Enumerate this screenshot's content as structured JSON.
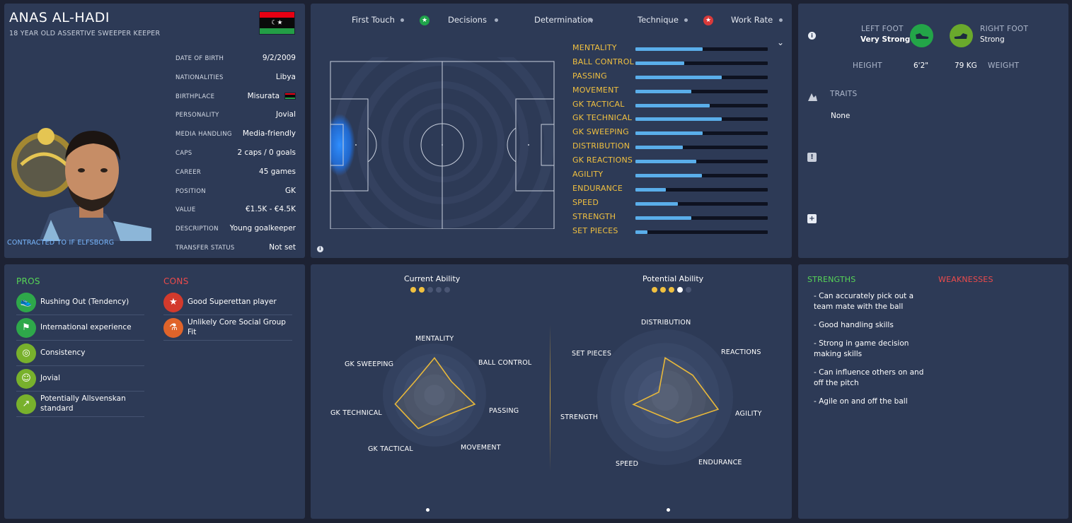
{
  "profile": {
    "name": "ANAS AL-HADI",
    "subtitle": "18 YEAR OLD ASSERTIVE  SWEEPER KEEPER",
    "contract": "CONTRACTED TO IF ELFSBORG",
    "flag_colors": {
      "red": "#e70013",
      "black": "#0a0a0a",
      "green": "#239e46"
    },
    "info": [
      {
        "label": "DATE OF BIRTH",
        "value": "9/2/2009"
      },
      {
        "label": "NATIONALITIES",
        "value": "Libya"
      },
      {
        "label": "BIRTHPLACE",
        "value": "Misurata"
      },
      {
        "label": "PERSONALITY",
        "value": "Jovial"
      },
      {
        "label": "MEDIA HANDLING",
        "value": "Media-friendly"
      },
      {
        "label": "CAPS",
        "value": "2 caps / 0 goals"
      },
      {
        "label": "CAREER",
        "value": "45  games"
      },
      {
        "label": "POSITION",
        "value": "GK"
      },
      {
        "label": "VALUE",
        "value": "€1.5K - €4.5K"
      },
      {
        "label": "DESCRIPTION",
        "value": "Young goalkeeper"
      },
      {
        "label": "TRANSFER STATUS",
        "value": "Not set"
      }
    ]
  },
  "attribute_tabs": [
    {
      "label": "First Touch",
      "badge": "none"
    },
    {
      "label": "Decisions",
      "badge": "green-star"
    },
    {
      "label": "Determination",
      "badge": "none"
    },
    {
      "label": "Technique",
      "badge": "none"
    },
    {
      "label": "Work Rate",
      "badge": "red-star"
    }
  ],
  "attributes": [
    {
      "label": "MENTALITY",
      "level": 0.51
    },
    {
      "label": "BALL CONTROL",
      "level": 0.37
    },
    {
      "label": "PASSING",
      "level": 0.65
    },
    {
      "label": "MOVEMENT",
      "level": 0.42
    },
    {
      "label": "GK TACTICAL",
      "level": 0.56
    },
    {
      "label": "GK TECHNICAL",
      "level": 0.65
    },
    {
      "label": "GK SWEEPING",
      "level": 0.51
    },
    {
      "label": "DISTRIBUTION",
      "level": 0.36
    },
    {
      "label": "GK REACTIONS",
      "level": 0.46
    },
    {
      "label": "AGILITY",
      "level": 0.5
    },
    {
      "label": "ENDURANCE",
      "level": 0.23
    },
    {
      "label": "SPEED",
      "level": 0.32
    },
    {
      "label": "STRENGTH",
      "level": 0.42
    },
    {
      "label": "SET PIECES",
      "level": 0.09
    }
  ],
  "feet": {
    "left_foot_label": "LEFT FOOT",
    "left_foot_value": "Very Strong",
    "right_foot_label": "RIGHT FOOT",
    "right_foot_value": "Strong",
    "height_label": "HEIGHT",
    "height_value": "6'2\"",
    "weight_value": "79 KG",
    "weight_label": "WEIGHT",
    "traits_label": "TRAITS",
    "traits_value": "None",
    "left_color": "#23a548",
    "right_color": "#6aa92c"
  },
  "pros": {
    "title": "PROS",
    "items": [
      {
        "text": "Rushing Out (Tendency)",
        "icon": "boot-icon"
      },
      {
        "text": "International experience",
        "icon": "flag-icon"
      },
      {
        "text": "Consistency",
        "icon": "target-icon"
      },
      {
        "text": "Jovial",
        "icon": "head-icon"
      },
      {
        "text": "Potentially Allsvenskan standard",
        "icon": "trend-up-icon"
      }
    ]
  },
  "cons": {
    "title": "CONS",
    "items": [
      {
        "text": "Good Superettan player",
        "icon": "star-icon"
      },
      {
        "text": "Unlikely Core Social Group Fit",
        "icon": "flask-icon"
      }
    ]
  },
  "ability": {
    "current_label": "Current Ability",
    "potential_label": "Potential Ability",
    "current_stars": [
      "full",
      "full",
      "empty",
      "empty",
      "empty"
    ],
    "potential_stars": [
      "full",
      "full",
      "full",
      "half",
      "empty"
    ]
  },
  "radar_left": {
    "axes": [
      "MENTALITY",
      "BALL CONTROL",
      "PASSING",
      "MOVEMENT",
      "GK TACTICAL",
      "GK TECHNICAL",
      "GK SWEEPING"
    ],
    "values": [
      0.72,
      0.42,
      0.8,
      0.45,
      0.72,
      0.78,
      0.46
    ]
  },
  "radar_right": {
    "axes": [
      "DISTRIBUTION",
      "REACTIONS",
      "AGILITY",
      "ENDURANCE",
      "SPEED",
      "STRENGTH",
      "SET PIECES"
    ],
    "values": [
      0.58,
      0.52,
      0.8,
      0.42,
      0.28,
      0.48,
      0.12
    ]
  },
  "strengths": {
    "title": "STRENGTHS",
    "items": [
      "- Can accurately pick out a team mate with the ball",
      "- Good handling skills",
      "- Strong in game decision making skills",
      "- Can influence others on and off the pitch",
      "- Agile on and off the ball"
    ]
  },
  "weaknesses": {
    "title": "WEAKNESSES"
  },
  "colors": {
    "gold": "#f0c040",
    "bar": "#5aaeea",
    "pros": "#57d657",
    "cons": "#ee4b4b"
  }
}
